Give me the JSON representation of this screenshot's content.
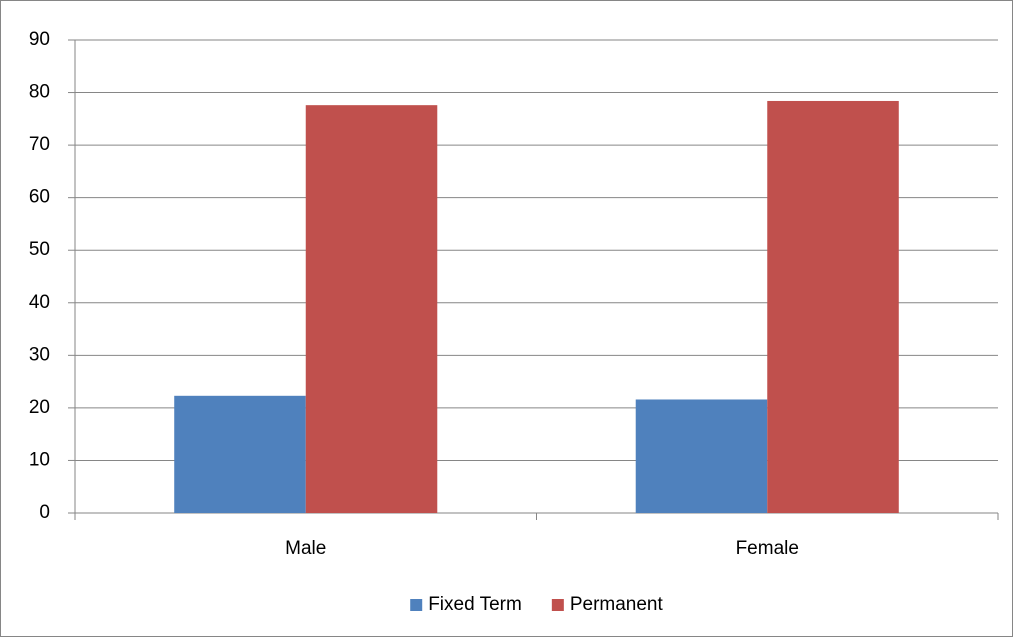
{
  "chart_data": {
    "type": "bar",
    "categories": [
      "Male",
      "Female"
    ],
    "series": [
      {
        "name": "Fixed Term",
        "color": "#4f81bd",
        "values": [
          22.3,
          21.6
        ]
      },
      {
        "name": "Permanent",
        "color": "#c0504d",
        "values": [
          77.6,
          78.4
        ]
      }
    ],
    "ylim": [
      0,
      90
    ],
    "yticks": [
      0,
      10,
      20,
      30,
      40,
      50,
      60,
      70,
      80,
      90
    ],
    "grid": true,
    "legend": "bottom"
  }
}
